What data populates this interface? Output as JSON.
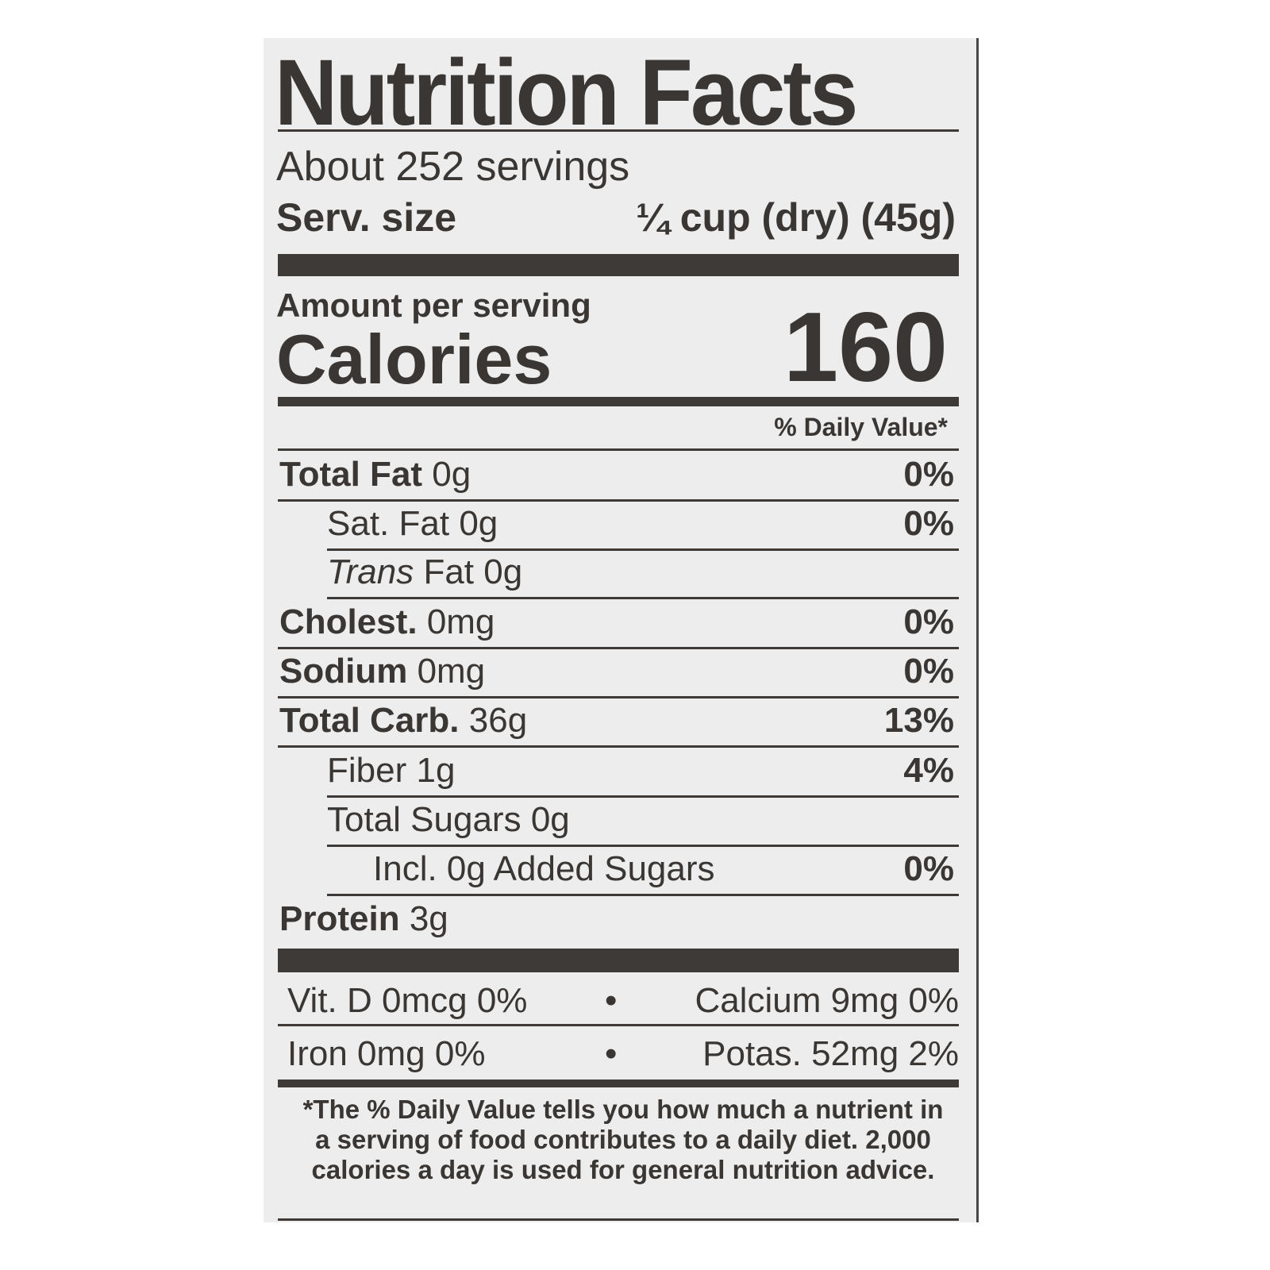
{
  "title": "Nutrition Facts",
  "servings": "About 252 servings",
  "serving_size": {
    "label": "Serv. size",
    "value": "¼ cup (dry) (45g)"
  },
  "amount_per_serving": "Amount per serving",
  "calories": {
    "label": "Calories",
    "value": "160"
  },
  "daily_value_header": "% Daily Value*",
  "nutrients": [
    {
      "name": "Total Fat",
      "amount": "0g",
      "dv": "0%",
      "bold": true,
      "indent": 0
    },
    {
      "name": "Sat. Fat",
      "amount": "0g",
      "dv": "0%",
      "bold": false,
      "indent": 1
    },
    {
      "name": "Trans",
      "name_suffix": "Fat",
      "amount": "0g",
      "dv": "",
      "bold": false,
      "indent": 1
    },
    {
      "name": "Cholest.",
      "amount": "0mg",
      "dv": "0%",
      "bold": true,
      "indent": 0
    },
    {
      "name": "Sodium",
      "amount": "0mg",
      "dv": "0%",
      "bold": true,
      "indent": 0
    },
    {
      "name": "Total Carb.",
      "amount": "36g",
      "dv": "13%",
      "bold": true,
      "indent": 0
    },
    {
      "name": "Fiber",
      "amount": "1g",
      "dv": "4%",
      "bold": false,
      "indent": 1
    },
    {
      "name": "Total Sugars",
      "amount": "0g",
      "dv": "",
      "bold": false,
      "indent": 1
    },
    {
      "name": "Incl. 0g Added Sugars",
      "amount": "",
      "dv": "0%",
      "bold": false,
      "indent": 2
    },
    {
      "name": "Protein",
      "amount": "3g",
      "dv": "",
      "bold": true,
      "indent": 0
    }
  ],
  "vitamins": [
    {
      "left": "Vit. D 0mcg 0%",
      "right": "Calcium 9mg 0%"
    },
    {
      "left": "Iron 0mg 0%",
      "right": "Potas. 52mg 2%"
    }
  ],
  "bullet": "•",
  "footnote": [
    "*The % Daily Value tells you how much a nutrient in",
    "a serving of food contributes to a daily diet. 2,000",
    "calories a day is used for general nutrition advice."
  ]
}
